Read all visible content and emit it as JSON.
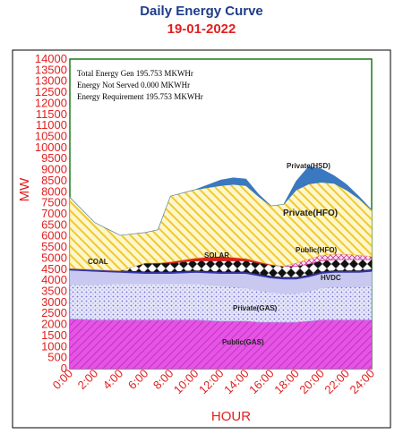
{
  "chart_data": {
    "type": "area",
    "title": "Daily Energy Curve",
    "subtitle": "19-01-2022",
    "xlabel": "HOUR",
    "ylabel": "MW",
    "ylim": [
      0,
      14000
    ],
    "xlim": [
      0,
      24
    ],
    "y_ticks": [
      "0",
      "500",
      "1000",
      "1500",
      "2000",
      "2500",
      "3000",
      "3500",
      "4000",
      "4500",
      "5000",
      "5500",
      "6000",
      "6500",
      "7000",
      "7500",
      "8000",
      "8500",
      "9000",
      "9500",
      "10000",
      "10500",
      "11000",
      "11500",
      "12000",
      "12500",
      "13000",
      "13500",
      "14000"
    ],
    "x_ticks": [
      "0:00",
      "2:00",
      "4:00",
      "6:00",
      "8:00",
      "10:00",
      "12:00",
      "14:00",
      "16:00",
      "18:00",
      "20:00",
      "22:00",
      "24:00"
    ],
    "annotations": [
      "Total Energy Gen 195.753 MKWHr",
      "Energy Not Served  0.000 MKWHr",
      "Energy Requirement     195.753 MKWHr"
    ],
    "x": [
      0,
      2,
      4,
      6,
      7,
      8,
      10,
      12,
      13,
      14,
      15,
      16,
      17,
      18,
      19,
      20,
      21,
      22,
      23,
      24
    ],
    "series": [
      {
        "name": "Public(GAS)",
        "color": "#e040e0",
        "pattern": "diag-magenta",
        "values": [
          2250,
          2200,
          2200,
          2200,
          2200,
          2200,
          2200,
          2150,
          2150,
          2150,
          2100,
          2100,
          2100,
          2100,
          2150,
          2200,
          2200,
          2200,
          2200,
          2200
        ]
      },
      {
        "name": "Private(GAS)",
        "color": "#9aa0e8",
        "pattern": "dots-blue",
        "values": [
          1550,
          1600,
          1650,
          1650,
          1650,
          1650,
          1650,
          1600,
          1550,
          1500,
          1450,
          1350,
          1300,
          1300,
          1350,
          1450,
          1500,
          1500,
          1500,
          1550
        ]
      },
      {
        "name": "HVDC",
        "color": "#c8c8f0",
        "pattern": "solid",
        "values": [
          650,
          600,
          500,
          450,
          450,
          450,
          500,
          550,
          600,
          650,
          650,
          650,
          650,
          650,
          650,
          650,
          650,
          650,
          650,
          650
        ]
      },
      {
        "name": "",
        "color": "#3333aa",
        "pattern": "solid",
        "values": [
          80,
          80,
          80,
          80,
          80,
          80,
          80,
          80,
          80,
          80,
          80,
          80,
          80,
          80,
          80,
          80,
          80,
          80,
          80,
          80
        ]
      },
      {
        "name": "COAL",
        "color": "#111111",
        "pattern": "diamonds",
        "values": [
          0,
          0,
          0,
          400,
          400,
          400,
          450,
          500,
          500,
          500,
          500,
          500,
          500,
          500,
          500,
          500,
          500,
          500,
          500,
          450
        ]
      },
      {
        "name": "SOLAR",
        "color": "#e02020",
        "pattern": "solid",
        "values": [
          0,
          0,
          0,
          0,
          0,
          50,
          120,
          200,
          150,
          100,
          60,
          30,
          0,
          0,
          0,
          0,
          0,
          0,
          0,
          0
        ]
      },
      {
        "name": "Public(HFO)",
        "color": "#cc3399",
        "pattern": "cross-pink",
        "values": [
          0,
          0,
          0,
          0,
          0,
          0,
          0,
          0,
          0,
          0,
          0,
          0,
          0,
          150,
          220,
          250,
          250,
          250,
          200,
          150
        ]
      },
      {
        "name": "Private(HFO)",
        "color": "#f0cc40",
        "pattern": "diag-yellow",
        "values": [
          3220,
          2120,
          1600,
          1380,
          1500,
          2970,
          3100,
          3200,
          3300,
          3300,
          2950,
          2650,
          2800,
          3300,
          3400,
          3300,
          3200,
          2900,
          2550,
          2100
        ]
      },
      {
        "name": "Private(HSD)",
        "color": "#3a78c0",
        "pattern": "solid",
        "values": [
          0,
          0,
          0,
          0,
          0,
          0,
          0,
          250,
          300,
          300,
          100,
          0,
          0,
          400,
          800,
          600,
          350,
          250,
          100,
          0
        ]
      }
    ]
  }
}
